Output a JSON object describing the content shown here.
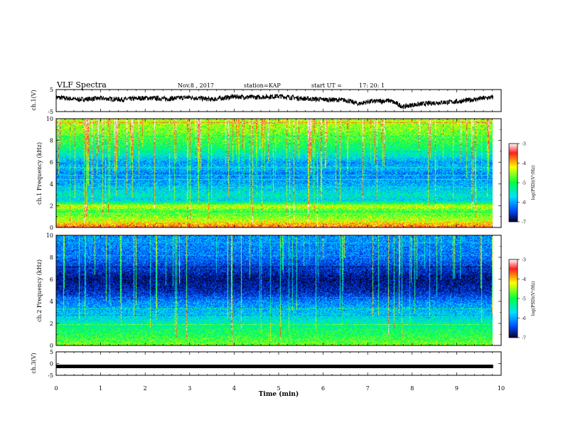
{
  "header": {
    "title": "VLF Spectra",
    "date": "Nov.8  , 2017",
    "station_label": "station=",
    "station": "KAP",
    "start_label": "start  UT  =",
    "start_time": "17: 20: 1"
  },
  "chart_data": [
    {
      "type": "line",
      "name": "ch1-waveform",
      "ylabel": "ch.1(V)",
      "xlim": [
        0,
        10
      ],
      "ylim": [
        -5,
        5
      ],
      "yticks": [
        5,
        -5
      ],
      "x_range_of_data": [
        0,
        9.82
      ],
      "trend": [
        [
          0,
          1.5
        ],
        [
          0.5,
          0.5
        ],
        [
          1,
          1.0
        ],
        [
          1.5,
          0.5
        ],
        [
          2,
          1.2
        ],
        [
          2.5,
          0.8
        ],
        [
          3,
          1.5
        ],
        [
          3.5,
          0.5
        ],
        [
          4,
          1.8
        ],
        [
          4.5,
          1.5
        ],
        [
          5,
          2.0
        ],
        [
          5.5,
          1.0
        ],
        [
          6,
          0.5
        ],
        [
          6.5,
          0.2
        ],
        [
          6.8,
          -1.5
        ],
        [
          7,
          -0.5
        ],
        [
          7.5,
          0.0
        ],
        [
          7.8,
          -2.8
        ],
        [
          8,
          -2.0
        ],
        [
          8.5,
          -1.0
        ],
        [
          9,
          -0.5
        ],
        [
          9.5,
          0.8
        ],
        [
          9.82,
          1.5
        ]
      ]
    },
    {
      "type": "heatmap",
      "name": "ch1-spectrogram",
      "ylabel": "ch.1 Frequency (kHz)",
      "xlim": [
        0,
        10
      ],
      "ylim": [
        0,
        10
      ],
      "yticks": [
        0,
        2,
        4,
        6,
        8,
        10
      ],
      "x_range_of_data": [
        0,
        9.82
      ],
      "colorbar": {
        "label": "log(PSD)(V²/Hz)",
        "range": [
          -7,
          -3
        ],
        "ticks": [
          "-3",
          "-4",
          "-5",
          "-6",
          "-7"
        ]
      },
      "intensity_profile": [
        [
          0,
          -3.6
        ],
        [
          0.5,
          -4.2
        ],
        [
          1.0,
          -4.6
        ],
        [
          1.5,
          -4.9
        ],
        [
          2.0,
          -4.3
        ],
        [
          2.5,
          -5.7
        ],
        [
          3.0,
          -5.5
        ],
        [
          4.0,
          -5.9
        ],
        [
          5.0,
          -6.1
        ],
        [
          5.5,
          -5.8
        ],
        [
          6.0,
          -6.0
        ],
        [
          6.5,
          -5.6
        ],
        [
          7.0,
          -5.3
        ],
        [
          8.0,
          -4.9
        ],
        [
          9.0,
          -4.6
        ],
        [
          10.0,
          -4.4
        ]
      ]
    },
    {
      "type": "heatmap",
      "name": "ch2-spectrogram",
      "ylabel": "ch.2 Frequency (kHz)",
      "xlim": [
        0,
        10
      ],
      "ylim": [
        0,
        10
      ],
      "yticks": [
        0,
        2,
        4,
        6,
        8,
        10
      ],
      "x_range_of_data": [
        0,
        9.82
      ],
      "colorbar": {
        "label": "log(PSD)(V²/Hz)",
        "range": [
          -7,
          -3
        ],
        "ticks": [
          "-3",
          "-4",
          "-5",
          "-6",
          "-7"
        ]
      },
      "intensity_profile": [
        [
          0,
          -4.6
        ],
        [
          0.5,
          -4.8
        ],
        [
          1.0,
          -5.0
        ],
        [
          1.5,
          -5.1
        ],
        [
          2.0,
          -5.4
        ],
        [
          3.0,
          -5.8
        ],
        [
          4.0,
          -6.1
        ],
        [
          4.5,
          -6.4
        ],
        [
          5.0,
          -6.6
        ],
        [
          6.0,
          -6.8
        ],
        [
          7.0,
          -6.5
        ],
        [
          8.0,
          -6.2
        ],
        [
          9.0,
          -6.1
        ],
        [
          10.0,
          -6.0
        ]
      ]
    },
    {
      "type": "line",
      "name": "ch3-waveform",
      "ylabel": "ch.3(V)",
      "xlim": [
        0,
        10
      ],
      "ylim": [
        -5,
        5
      ],
      "yticks": [
        5,
        0,
        -5
      ],
      "x_range_of_data": [
        0,
        9.82
      ],
      "constant_value": -1.2
    }
  ],
  "xaxis": {
    "label": "Time (min)",
    "ticks": [
      "0",
      "1",
      "2",
      "3",
      "4",
      "5",
      "6",
      "7",
      "8",
      "9",
      "10"
    ]
  }
}
